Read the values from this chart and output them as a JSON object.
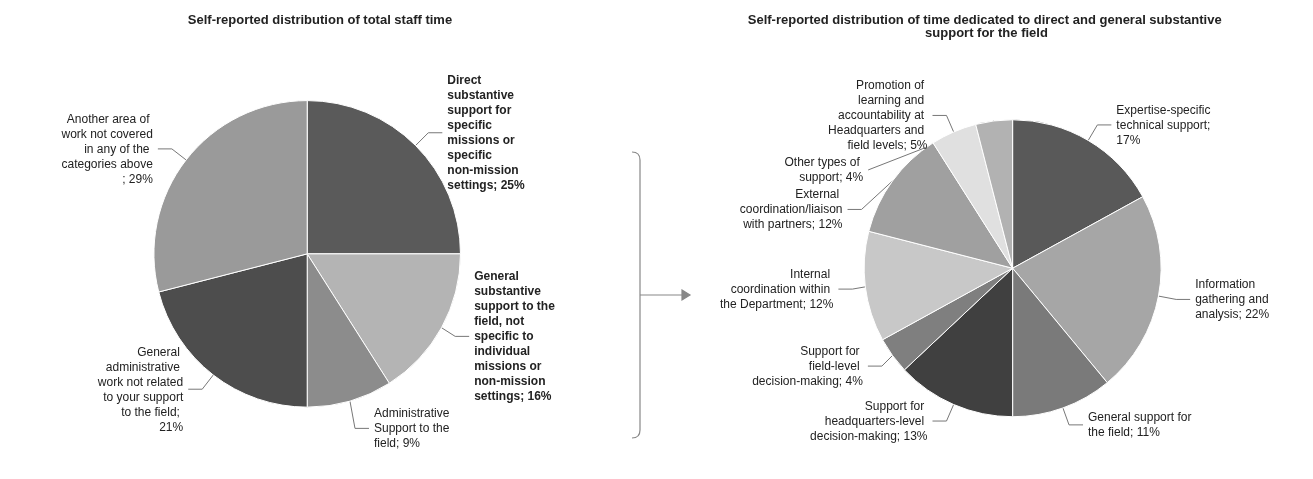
{
  "chart_data": [
    {
      "type": "pie",
      "title": "Self-reported distribution of total staff time",
      "categories": [
        "Direct substantive support for specific missions or specific non-mission settings; 25%",
        "General substantive support to the field, not specific to individual missions or non-mission settings; 16%",
        "Administrative Support to the field; 9%",
        "General administrative work not related to your support to the field; 21%",
        "Another area of work not covered in any of the categories above; 29%"
      ],
      "values": [
        25,
        16,
        9,
        21,
        29
      ],
      "colors": [
        "#5a5a5a",
        "#b4b4b4",
        "#8c8c8c",
        "#4d4d4d",
        "#9a9a9a"
      ],
      "legend": false
    },
    {
      "type": "pie",
      "title": "Self-reported distribution of time dedicated to direct and general substantive support for the field",
      "categories": [
        "Expertise-specific technical support; 17%",
        "Information gathering and analysis; 22%",
        "General support for the field; 11%",
        "Support for headquarters-level decision-making; 13%",
        "Support for field-level decision-making; 4%",
        "Internal coordination within the Department; 12%",
        "External coordination/liaison with partners; 12%",
        "Promotion of learning and accountability at Headquarters and field levels; 5%",
        "Other types of support; 4%"
      ],
      "values": [
        17,
        22,
        11,
        13,
        4,
        12,
        12,
        5,
        4
      ],
      "colors": [
        "#595959",
        "#a6a6a6",
        "#7a7a7a",
        "#404040",
        "#7f7f7f",
        "#c8c8c8",
        "#a0a0a0",
        "#e0e0e0",
        "#b2b2b2"
      ],
      "legend": false
    }
  ]
}
